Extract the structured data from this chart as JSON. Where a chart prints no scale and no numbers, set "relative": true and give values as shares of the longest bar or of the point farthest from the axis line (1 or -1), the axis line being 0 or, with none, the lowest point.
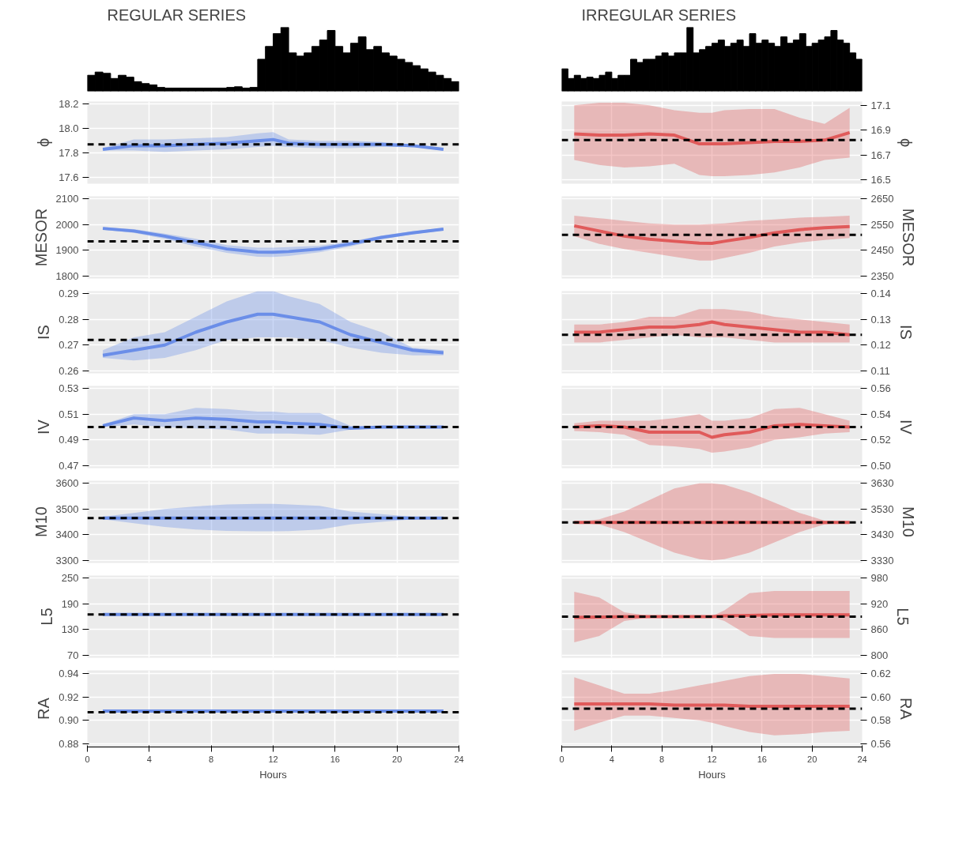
{
  "chart_data": [
    {
      "type": "bar",
      "title": "REGULAR SERIES",
      "relative": true,
      "color": "#000000",
      "categories": [
        null,
        null,
        null,
        null,
        null,
        null,
        null,
        null,
        null,
        null,
        null,
        null,
        null,
        null,
        null,
        null,
        null,
        null,
        null,
        null,
        null,
        null,
        null,
        null,
        null,
        null,
        null,
        null,
        null,
        null,
        null,
        null,
        null,
        null,
        null,
        null,
        null,
        null,
        null,
        null,
        null,
        null,
        null,
        null,
        null,
        null,
        null,
        null
      ],
      "values": [
        0.25,
        0.3,
        0.28,
        0.2,
        0.25,
        0.22,
        0.15,
        0.12,
        0.1,
        0.06,
        0.05,
        0.05,
        0.05,
        0.05,
        0.05,
        0.05,
        0.05,
        0.05,
        0.06,
        0.07,
        0.05,
        0.06,
        0.5,
        0.7,
        0.9,
        1.0,
        0.6,
        0.55,
        0.6,
        0.7,
        0.8,
        0.95,
        0.7,
        0.6,
        0.75,
        0.85,
        0.65,
        0.7,
        0.6,
        0.55,
        0.5,
        0.45,
        0.4,
        0.35,
        0.3,
        0.25,
        0.2,
        0.15
      ]
    },
    {
      "type": "bar",
      "title": "IRREGULAR SERIES",
      "relative": true,
      "color": "#000000",
      "categories": [
        null,
        null,
        null,
        null,
        null,
        null,
        null,
        null,
        null,
        null,
        null,
        null,
        null,
        null,
        null,
        null,
        null,
        null,
        null,
        null,
        null,
        null,
        null,
        null,
        null,
        null,
        null,
        null,
        null,
        null,
        null,
        null,
        null,
        null,
        null,
        null,
        null,
        null,
        null,
        null,
        null,
        null,
        null,
        null,
        null,
        null,
        null,
        null
      ],
      "values": [
        0.35,
        0.2,
        0.25,
        0.2,
        0.22,
        0.2,
        0.25,
        0.3,
        0.2,
        0.25,
        0.25,
        0.5,
        0.45,
        0.5,
        0.5,
        0.55,
        0.6,
        0.55,
        0.6,
        0.6,
        1.0,
        0.6,
        0.65,
        0.7,
        0.75,
        0.8,
        0.7,
        0.75,
        0.8,
        0.7,
        0.9,
        0.75,
        0.8,
        0.75,
        0.7,
        0.85,
        0.75,
        0.8,
        0.9,
        0.7,
        0.75,
        0.8,
        0.85,
        0.95,
        0.8,
        0.75,
        0.6,
        0.5
      ]
    },
    {
      "type": "line",
      "ylabel": "ϕ",
      "x": [
        1,
        3,
        5,
        7,
        9,
        11,
        12,
        13,
        15,
        17,
        19,
        21,
        23
      ],
      "xlim": [
        0,
        24
      ],
      "xticks": [
        0,
        4,
        8,
        12,
        16,
        20,
        24
      ],
      "ylim": [
        17.55,
        18.22
      ],
      "yticks": [
        17.6,
        17.8,
        {
          "value": 18,
          "label": "18.0"
        },
        18.2
      ],
      "grid": true,
      "tick_labels": "y",
      "ref_lines": [
        {
          "axis": "y",
          "value": 17.87,
          "color": "#000000",
          "line_style": "dashed"
        }
      ],
      "series": [
        {
          "color": "#6b8ee8",
          "values": [
            17.83,
            17.86,
            17.86,
            17.87,
            17.88,
            17.9,
            17.91,
            17.88,
            17.87,
            17.87,
            17.87,
            17.86,
            17.83
          ],
          "lower": [
            17.82,
            17.82,
            17.81,
            17.82,
            17.83,
            17.85,
            17.86,
            17.85,
            17.84,
            17.84,
            17.85,
            17.85,
            17.82
          ],
          "upper": [
            17.84,
            17.91,
            17.91,
            17.92,
            17.93,
            17.96,
            17.97,
            17.91,
            17.9,
            17.9,
            17.89,
            17.87,
            17.84
          ]
        }
      ]
    },
    {
      "type": "line",
      "y2label": "ϕ",
      "x": [
        1,
        3,
        5,
        7,
        9,
        11,
        12,
        13,
        15,
        17,
        19,
        21,
        23
      ],
      "xlim": [
        0,
        24
      ],
      "xticks": [
        0,
        4,
        8,
        12,
        16,
        20,
        24
      ],
      "y2lim": [
        16.47,
        17.13
      ],
      "y2ticks": [
        16.5,
        16.7,
        16.9,
        17.1
      ],
      "grid": true,
      "tick_labels": "y",
      "ref_lines": [
        {
          "axis": "y2",
          "value": 16.82,
          "color": "#000000",
          "line_style": "dashed"
        }
      ],
      "series": [
        {
          "color": "#e05a5a",
          "axis": "y2",
          "values": [
            16.87,
            16.86,
            16.86,
            16.87,
            16.86,
            16.79,
            16.79,
            16.79,
            16.8,
            16.81,
            16.81,
            16.82,
            16.88
          ],
          "lower": [
            16.66,
            16.62,
            16.6,
            16.61,
            16.63,
            16.54,
            16.53,
            16.53,
            16.54,
            16.56,
            16.6,
            16.66,
            16.68
          ],
          "upper": [
            17.1,
            17.12,
            17.12,
            17.1,
            17.06,
            17.04,
            17.04,
            17.06,
            17.07,
            17.07,
            17.0,
            16.95,
            17.08
          ]
        }
      ]
    },
    {
      "type": "line",
      "ylabel": "MESOR",
      "x": [
        1,
        3,
        5,
        7,
        9,
        11,
        12,
        13,
        15,
        17,
        19,
        21,
        23
      ],
      "xlim": [
        0,
        24
      ],
      "xticks": [
        0,
        4,
        8,
        12,
        16,
        20,
        24
      ],
      "ylim": [
        1790,
        2110
      ],
      "yticks": [
        1800,
        1900,
        2000,
        2100
      ],
      "grid": true,
      "tick_labels": "y",
      "ref_lines": [
        {
          "axis": "y",
          "value": 1935,
          "color": "#000000",
          "line_style": "dashed"
        }
      ],
      "series": [
        {
          "color": "#6b8ee8",
          "values": [
            1985,
            1975,
            1955,
            1930,
            1905,
            1893,
            1892,
            1895,
            1905,
            1925,
            1950,
            1968,
            1982
          ],
          "lower": [
            1980,
            1968,
            1945,
            1915,
            1890,
            1875,
            1874,
            1878,
            1892,
            1915,
            1943,
            1962,
            1977
          ],
          "upper": [
            1990,
            1982,
            1965,
            1945,
            1920,
            1910,
            1910,
            1912,
            1918,
            1935,
            1957,
            1974,
            1987
          ]
        }
      ]
    },
    {
      "type": "line",
      "y2label": "MESOR",
      "x": [
        1,
        3,
        5,
        7,
        9,
        11,
        12,
        13,
        15,
        17,
        19,
        21,
        23
      ],
      "xlim": [
        0,
        24
      ],
      "xticks": [
        0,
        4,
        8,
        12,
        16,
        20,
        24
      ],
      "y2lim": [
        2340,
        2660
      ],
      "y2ticks": [
        2350,
        2450,
        2550,
        2650
      ],
      "grid": true,
      "tick_labels": "y",
      "ref_lines": [
        {
          "axis": "y2",
          "value": 2510,
          "color": "#000000",
          "line_style": "dashed"
        }
      ],
      "series": [
        {
          "color": "#e05a5a",
          "axis": "y2",
          "values": [
            2545,
            2525,
            2505,
            2493,
            2485,
            2478,
            2477,
            2485,
            2500,
            2518,
            2530,
            2538,
            2542
          ],
          "lower": [
            2505,
            2475,
            2455,
            2440,
            2425,
            2410,
            2410,
            2420,
            2440,
            2465,
            2480,
            2490,
            2498
          ],
          "upper": [
            2585,
            2575,
            2565,
            2555,
            2550,
            2550,
            2552,
            2555,
            2565,
            2570,
            2577,
            2580,
            2585
          ]
        }
      ]
    },
    {
      "type": "line",
      "ylabel": "IS",
      "x": [
        1,
        3,
        5,
        7,
        9,
        11,
        12,
        13,
        15,
        17,
        19,
        21,
        23
      ],
      "xlim": [
        0,
        24
      ],
      "xticks": [
        0,
        4,
        8,
        12,
        16,
        20,
        24
      ],
      "ylim": [
        0.259,
        0.291
      ],
      "yticks": [
        0.26,
        0.27,
        0.28,
        0.29
      ],
      "grid": true,
      "tick_labels": "y",
      "ref_lines": [
        {
          "axis": "y",
          "value": 0.272,
          "color": "#000000",
          "line_style": "dashed"
        }
      ],
      "series": [
        {
          "color": "#6b8ee8",
          "values": [
            0.266,
            0.268,
            0.27,
            0.275,
            0.279,
            0.282,
            0.282,
            0.281,
            0.279,
            0.274,
            0.271,
            0.268,
            0.267
          ],
          "lower": [
            0.265,
            0.264,
            0.265,
            0.268,
            0.272,
            0.273,
            0.273,
            0.273,
            0.272,
            0.269,
            0.267,
            0.266,
            0.266
          ],
          "upper": [
            0.268,
            0.273,
            0.275,
            0.281,
            0.287,
            0.291,
            0.291,
            0.289,
            0.286,
            0.279,
            0.275,
            0.269,
            0.268
          ]
        }
      ]
    },
    {
      "type": "line",
      "y2label": "IS",
      "x": [
        1,
        3,
        5,
        7,
        9,
        11,
        12,
        13,
        15,
        17,
        19,
        21,
        23
      ],
      "xlim": [
        0,
        24
      ],
      "xticks": [
        0,
        4,
        8,
        12,
        16,
        20,
        24
      ],
      "y2lim": [
        0.109,
        0.141
      ],
      "y2ticks": [
        0.11,
        0.12,
        0.13,
        0.14
      ],
      "grid": true,
      "tick_labels": "y",
      "ref_lines": [
        {
          "axis": "y2",
          "value": 0.124,
          "color": "#000000",
          "line_style": "dashed"
        }
      ],
      "series": [
        {
          "color": "#e05a5a",
          "axis": "y2",
          "values": [
            0.125,
            0.125,
            0.126,
            0.127,
            0.127,
            0.128,
            0.129,
            0.128,
            0.127,
            0.126,
            0.125,
            0.125,
            0.124
          ],
          "lower": [
            0.121,
            0.121,
            0.122,
            0.123,
            0.124,
            0.123,
            0.123,
            0.123,
            0.122,
            0.121,
            0.121,
            0.121,
            0.121
          ],
          "upper": [
            0.128,
            0.128,
            0.129,
            0.131,
            0.131,
            0.134,
            0.134,
            0.134,
            0.133,
            0.131,
            0.13,
            0.129,
            0.128
          ]
        }
      ]
    },
    {
      "type": "line",
      "ylabel": "IV",
      "x": [
        1,
        3,
        5,
        7,
        9,
        11,
        12,
        13,
        15,
        17,
        19,
        21,
        23
      ],
      "xlim": [
        0,
        24
      ],
      "xticks": [
        0,
        4,
        8,
        12,
        16,
        20,
        24
      ],
      "ylim": [
        0.468,
        0.532
      ],
      "yticks": [
        0.47,
        0.49,
        0.51,
        0.53
      ],
      "grid": true,
      "tick_labels": "y",
      "ref_lines": [
        {
          "axis": "y",
          "value": 0.5,
          "color": "#000000",
          "line_style": "dashed"
        }
      ],
      "series": [
        {
          "color": "#6b8ee8",
          "values": [
            0.501,
            0.507,
            0.505,
            0.507,
            0.506,
            0.504,
            0.504,
            0.503,
            0.502,
            0.499,
            0.5,
            0.5,
            0.5
          ],
          "lower": [
            0.5,
            0.502,
            0.5,
            0.499,
            0.498,
            0.495,
            0.495,
            0.495,
            0.494,
            0.498,
            0.499,
            0.499,
            0.499
          ],
          "upper": [
            0.502,
            0.51,
            0.51,
            0.515,
            0.514,
            0.512,
            0.512,
            0.511,
            0.511,
            0.501,
            0.501,
            0.501,
            0.501
          ]
        }
      ]
    },
    {
      "type": "line",
      "y2label": "IV",
      "x": [
        1,
        3,
        5,
        7,
        9,
        11,
        12,
        13,
        15,
        17,
        19,
        21,
        23
      ],
      "xlim": [
        0,
        24
      ],
      "xticks": [
        0,
        4,
        8,
        12,
        16,
        20,
        24
      ],
      "y2lim": [
        0.498,
        0.562
      ],
      "y2ticks": [
        {
          "value": 0.5,
          "label": "0.50"
        },
        0.52,
        0.54,
        0.56
      ],
      "grid": true,
      "tick_labels": "y",
      "ref_lines": [
        {
          "axis": "y2",
          "value": 0.53,
          "color": "#000000",
          "line_style": "dashed"
        }
      ],
      "series": [
        {
          "color": "#e05a5a",
          "axis": "y2",
          "values": [
            0.53,
            0.531,
            0.53,
            0.526,
            0.526,
            0.526,
            0.522,
            0.524,
            0.526,
            0.531,
            0.532,
            0.531,
            0.53
          ],
          "lower": [
            0.527,
            0.526,
            0.524,
            0.516,
            0.515,
            0.513,
            0.51,
            0.511,
            0.514,
            0.52,
            0.522,
            0.525,
            0.526
          ],
          "upper": [
            0.533,
            0.535,
            0.535,
            0.535,
            0.537,
            0.54,
            0.535,
            0.535,
            0.537,
            0.544,
            0.545,
            0.54,
            0.535
          ]
        }
      ]
    },
    {
      "type": "line",
      "ylabel": "M10",
      "x": [
        1,
        3,
        5,
        7,
        9,
        11,
        12,
        13,
        15,
        17,
        19,
        21,
        23
      ],
      "xlim": [
        0,
        24
      ],
      "xticks": [
        0,
        4,
        8,
        12,
        16,
        20,
        24
      ],
      "ylim": [
        3290,
        3610
      ],
      "yticks": [
        3300,
        3400,
        3500,
        3600
      ],
      "grid": true,
      "tick_labels": "y",
      "ref_lines": [
        {
          "axis": "y",
          "value": 3465,
          "color": "#000000",
          "line_style": "dashed"
        }
      ],
      "series": [
        {
          "color": "#6b8ee8",
          "values": [
            3465,
            3465,
            3465,
            3465,
            3465,
            3465,
            3465,
            3465,
            3465,
            3465,
            3465,
            3465,
            3465
          ],
          "lower": [
            3460,
            3445,
            3430,
            3420,
            3415,
            3413,
            3413,
            3414,
            3420,
            3440,
            3450,
            3460,
            3463
          ],
          "upper": [
            3470,
            3485,
            3500,
            3510,
            3518,
            3520,
            3520,
            3518,
            3512,
            3490,
            3480,
            3470,
            3467
          ]
        }
      ]
    },
    {
      "type": "line",
      "y2label": "M10",
      "x": [
        1,
        3,
        5,
        7,
        9,
        11,
        12,
        13,
        15,
        17,
        19,
        21,
        23
      ],
      "xlim": [
        0,
        24
      ],
      "xticks": [
        0,
        4,
        8,
        12,
        16,
        20,
        24
      ],
      "y2lim": [
        3320,
        3640
      ],
      "y2ticks": [
        3330,
        3430,
        3530,
        3630
      ],
      "grid": true,
      "tick_labels": "y",
      "ref_lines": [
        {
          "axis": "y2",
          "value": 3478,
          "color": "#000000",
          "line_style": "dashed"
        }
      ],
      "series": [
        {
          "color": "#e05a5a",
          "axis": "y2",
          "values": [
            3478,
            3478,
            3478,
            3478,
            3478,
            3478,
            3478,
            3478,
            3478,
            3478,
            3478,
            3478,
            3478
          ],
          "lower": [
            3478,
            3470,
            3440,
            3400,
            3360,
            3335,
            3330,
            3335,
            3360,
            3400,
            3440,
            3470,
            3478
          ],
          "upper": [
            3478,
            3490,
            3520,
            3565,
            3610,
            3630,
            3630,
            3625,
            3595,
            3555,
            3515,
            3485,
            3478
          ]
        }
      ]
    },
    {
      "type": "line",
      "ylabel": "L5",
      "x": [
        1,
        3,
        5,
        7,
        9,
        11,
        12,
        13,
        15,
        17,
        19,
        21,
        23
      ],
      "xlim": [
        0,
        24
      ],
      "xticks": [
        0,
        4,
        8,
        12,
        16,
        20,
        24
      ],
      "ylim": [
        64,
        256
      ],
      "yticks": [
        70,
        130,
        190,
        250
      ],
      "grid": true,
      "tick_labels": "y",
      "ref_lines": [
        {
          "axis": "y",
          "value": 165,
          "color": "#000000",
          "line_style": "dashed"
        }
      ],
      "series": [
        {
          "color": "#6b8ee8",
          "values": [
            165,
            165,
            165,
            165,
            165,
            165,
            165,
            165,
            165,
            165,
            165,
            165,
            165
          ]
        }
      ]
    },
    {
      "type": "line",
      "y2label": "L5",
      "x": [
        1,
        3,
        5,
        7,
        9,
        11,
        12,
        13,
        15,
        17,
        19,
        21,
        23
      ],
      "xlim": [
        0,
        24
      ],
      "xticks": [
        0,
        4,
        8,
        12,
        16,
        20,
        24
      ],
      "y2lim": [
        794,
        986
      ],
      "y2ticks": [
        800,
        860,
        920,
        980
      ],
      "grid": true,
      "tick_labels": "y",
      "ref_lines": [
        {
          "axis": "y2",
          "value": 890,
          "color": "#000000",
          "line_style": "dashed"
        }
      ],
      "series": [
        {
          "color": "#e05a5a",
          "axis": "y2",
          "values": [
            888,
            889,
            890,
            890,
            890,
            890,
            890,
            892,
            893,
            894,
            894,
            894,
            894
          ],
          "lower": [
            830,
            845,
            880,
            888,
            889,
            889,
            889,
            880,
            845,
            840,
            840,
            840,
            840
          ],
          "upper": [
            948,
            935,
            900,
            892,
            891,
            891,
            891,
            905,
            945,
            950,
            950,
            950,
            950
          ]
        }
      ]
    },
    {
      "type": "line",
      "ylabel": "RA",
      "xlabel": "Hours",
      "x": [
        1,
        3,
        5,
        7,
        9,
        11,
        12,
        13,
        15,
        17,
        19,
        21,
        23
      ],
      "xlim": [
        0,
        24
      ],
      "xticks": [
        0,
        4,
        8,
        12,
        16,
        20,
        24
      ],
      "ylim": [
        0.877,
        0.943
      ],
      "yticks": [
        0.88,
        {
          "value": 0.9,
          "label": "0.90"
        },
        0.92,
        0.94
      ],
      "grid": true,
      "ref_lines": [
        {
          "axis": "y",
          "value": 0.907,
          "color": "#000000",
          "line_style": "dashed"
        }
      ],
      "series": [
        {
          "color": "#6b8ee8",
          "values": [
            0.908,
            0.908,
            0.908,
            0.908,
            0.908,
            0.908,
            0.908,
            0.908,
            0.908,
            0.908,
            0.908,
            0.908,
            0.908
          ]
        }
      ]
    },
    {
      "type": "line",
      "y2label": "RA",
      "xlabel": "Hours",
      "x": [
        1,
        3,
        5,
        7,
        9,
        11,
        12,
        13,
        15,
        17,
        19,
        21,
        23
      ],
      "xlim": [
        0,
        24
      ],
      "xticks": [
        0,
        4,
        8,
        12,
        16,
        20,
        24
      ],
      "y2lim": [
        0.557,
        0.623
      ],
      "y2ticks": [
        0.56,
        0.58,
        {
          "value": 0.6,
          "label": "0.60"
        },
        0.62
      ],
      "grid": true,
      "ref_lines": [
        {
          "axis": "y2",
          "value": 0.59,
          "color": "#000000",
          "line_style": "dashed"
        }
      ],
      "series": [
        {
          "color": "#e05a5a",
          "axis": "y2",
          "values": [
            0.594,
            0.594,
            0.594,
            0.594,
            0.593,
            0.593,
            0.593,
            0.593,
            0.592,
            0.592,
            0.592,
            0.592,
            0.592
          ],
          "lower": [
            0.571,
            0.578,
            0.584,
            0.584,
            0.582,
            0.58,
            0.578,
            0.575,
            0.57,
            0.567,
            0.568,
            0.57,
            0.571
          ],
          "upper": [
            0.617,
            0.61,
            0.603,
            0.603,
            0.606,
            0.61,
            0.612,
            0.614,
            0.618,
            0.62,
            0.62,
            0.618,
            0.616
          ]
        }
      ]
    }
  ]
}
